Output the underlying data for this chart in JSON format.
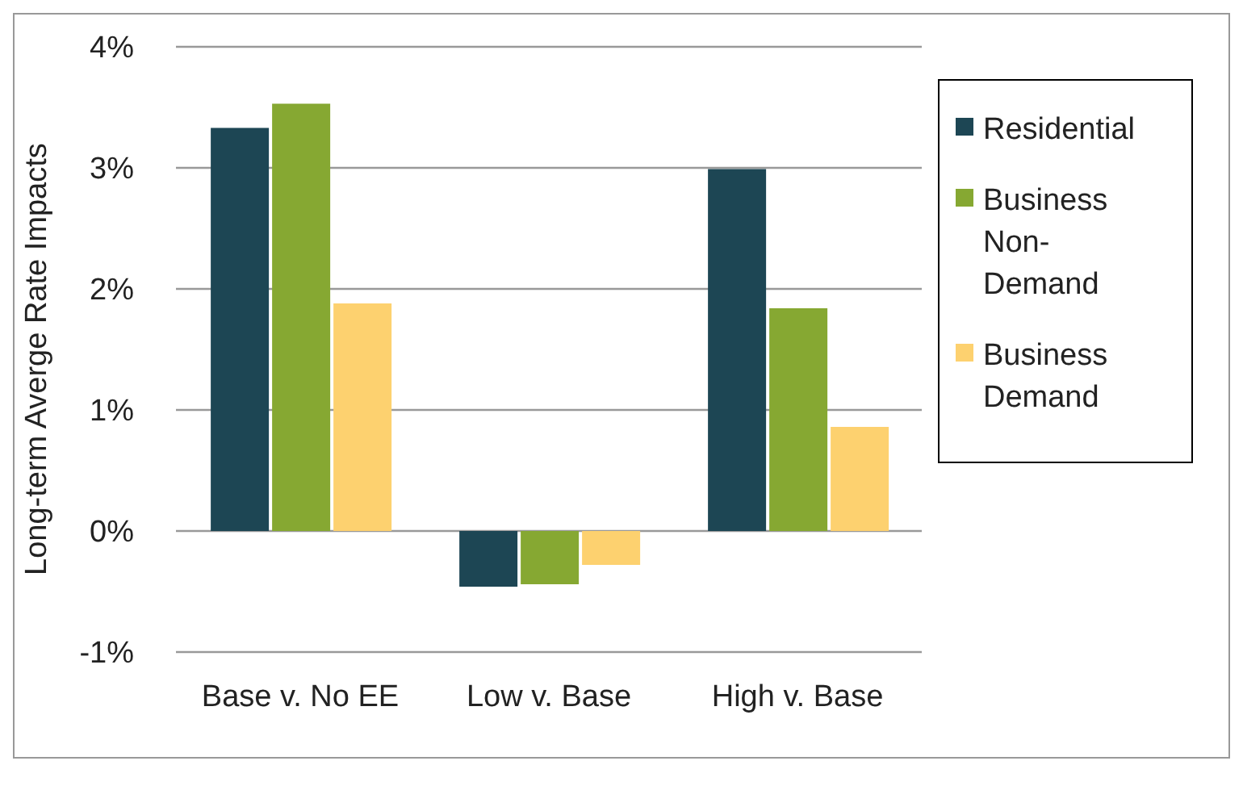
{
  "chart_data": {
    "type": "bar",
    "ylabel": "Long-term Averge Rate Impacts",
    "categories": [
      "Base v. No EE",
      "Low v. Base",
      "High v. Base"
    ],
    "series": [
      {
        "name": "Residential",
        "color": "#1d4654",
        "values": [
          3.33,
          -0.46,
          2.99
        ]
      },
      {
        "name": "Business Non-Demand",
        "color": "#86a832",
        "values": [
          3.53,
          -0.44,
          1.84
        ]
      },
      {
        "name": "Business Demand",
        "color": "#fdd16f",
        "values": [
          1.88,
          -0.28,
          0.86
        ]
      }
    ],
    "ylim": [
      -1,
      4
    ],
    "yticks": [
      {
        "value": -1,
        "label": "-1%"
      },
      {
        "value": 0,
        "label": "0%"
      },
      {
        "value": 1,
        "label": "1%"
      },
      {
        "value": 2,
        "label": "2%"
      },
      {
        "value": 3,
        "label": "3%"
      },
      {
        "value": 4,
        "label": "4%"
      }
    ],
    "grid": "y",
    "legend": "right"
  }
}
